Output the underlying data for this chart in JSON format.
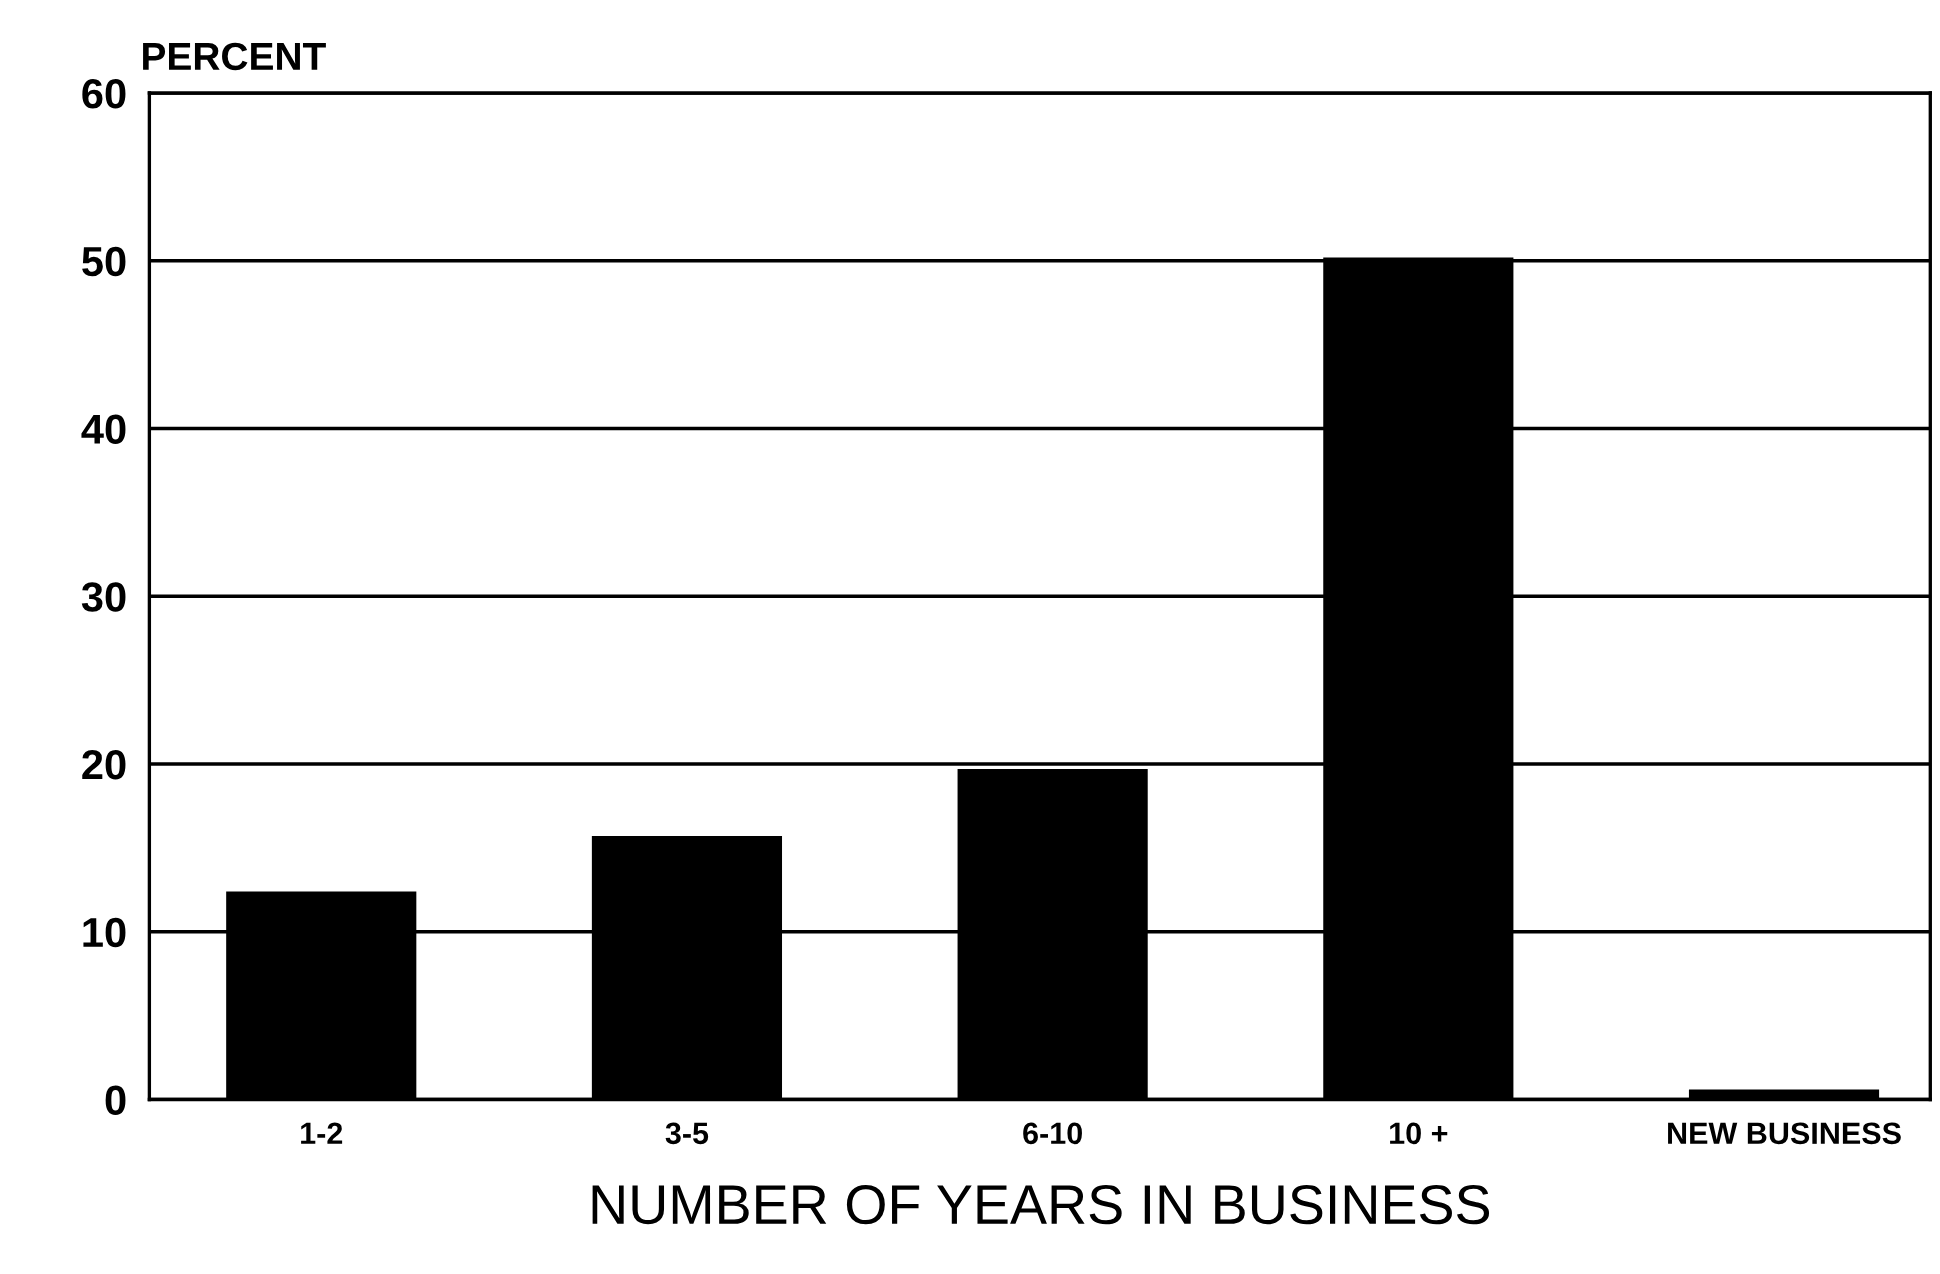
{
  "chart_data": {
    "type": "bar",
    "ylabel": "PERCENT",
    "xlabel": "NUMBER OF YEARS IN BUSINESS",
    "categories": [
      "1-2",
      "3-5",
      "6-10",
      "10 +",
      "NEW BUSINESS"
    ],
    "values": [
      12.4,
      15.7,
      19.7,
      50.2,
      0.6
    ],
    "color": "#000000",
    "ylim": [
      0,
      60
    ],
    "yticks": [
      0,
      10,
      20,
      30,
      40,
      50,
      60
    ],
    "grid": "y"
  }
}
